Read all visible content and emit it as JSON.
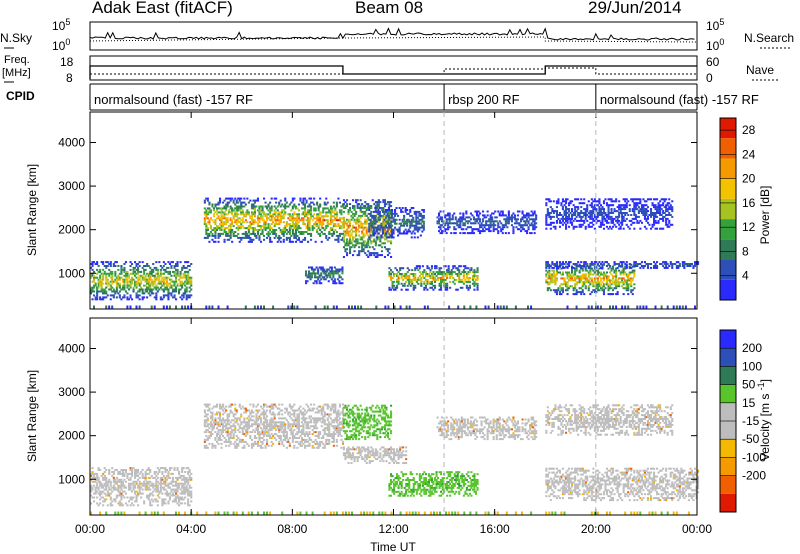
{
  "header": {
    "title": "Adak East (fitACF)",
    "beam": "Beam 08",
    "date": "29/Jun/2014"
  },
  "top_panels": {
    "nsky_label": "N.Sky",
    "nsearch_label": "N.Search",
    "freq_label_top": "Freq.",
    "freq_label_unit": "[MHz]",
    "nave_label": "Nave",
    "cpid_label": "CPID",
    "noise_ticks_left": [
      "10^5",
      "10^0"
    ],
    "noise_ticks_right": [
      "10^5",
      "10^0"
    ],
    "freq_ticks": [
      "18",
      "8"
    ],
    "nave_ticks": [
      "60",
      "0"
    ]
  },
  "cpid_segments": [
    {
      "label": "normalsound (fast) -157 RF",
      "start_h": 0,
      "end_h": 14
    },
    {
      "label": "rbsp 200 RF",
      "start_h": 14,
      "end_h": 20
    },
    {
      "label": "normalsound (fast) -157 RF",
      "start_h": 20,
      "end_h": 24
    }
  ],
  "colors": {
    "power_scale": [
      "#2a2aff",
      "#2c4fb8",
      "#2e7b56",
      "#35a13c",
      "#a7c321",
      "#f4c300",
      "#f59a00",
      "#f06000",
      "#e01a00"
    ],
    "velocity_scale": [
      "#2a2aff",
      "#2c4fb8",
      "#2e7b56",
      "#58c52b",
      "#bdbdbd",
      "#bdbdbd",
      "#f4b800",
      "#f59a00",
      "#f06000",
      "#e01a00"
    ],
    "ground_scatter": "#bdbdbd"
  },
  "chart_data": [
    {
      "type": "heatmap",
      "name": "power",
      "xlabel": "",
      "ylabel": "Slant Range [km]",
      "x_ticks": [
        "00:00",
        "04:00",
        "08:00",
        "12:00",
        "16:00",
        "20:00",
        "00:00"
      ],
      "y_ticks": [
        1000,
        2000,
        3000,
        4000
      ],
      "xlim_hours": [
        0,
        24
      ],
      "ylim_km": [
        180,
        4700
      ],
      "colorbar": {
        "label": "Power [dB]",
        "ticks": [
          4,
          8,
          12,
          16,
          20,
          24,
          28
        ],
        "range": [
          0,
          30
        ]
      },
      "regions": [
        {
          "t0": 0.0,
          "t1": 4.0,
          "r0": 380,
          "r1": 1250,
          "peak": 22
        },
        {
          "t0": 4.5,
          "t1": 10.0,
          "r0": 1700,
          "r1": 2700,
          "peak": 26
        },
        {
          "t0": 8.5,
          "t1": 10.0,
          "r0": 750,
          "r1": 1150,
          "peak": 12
        },
        {
          "t0": 10.0,
          "t1": 11.9,
          "r0": 1350,
          "r1": 2700,
          "peak": 26
        },
        {
          "t0": 11.0,
          "t1": 13.2,
          "r0": 1800,
          "r1": 2500,
          "peak": 10
        },
        {
          "t0": 11.8,
          "t1": 15.3,
          "r0": 600,
          "r1": 1150,
          "peak": 24
        },
        {
          "t0": 13.7,
          "t1": 17.6,
          "r0": 1900,
          "r1": 2400,
          "peak": 8
        },
        {
          "t0": 18.0,
          "t1": 21.5,
          "r0": 500,
          "r1": 1200,
          "peak": 26
        },
        {
          "t0": 18.0,
          "t1": 24.0,
          "r0": 1100,
          "r1": 1260,
          "peak": 8
        },
        {
          "t0": 18.0,
          "t1": 23.0,
          "r0": 2000,
          "r1": 2700,
          "peak": 6
        }
      ]
    },
    {
      "type": "heatmap",
      "name": "velocity",
      "xlabel": "Time UT",
      "ylabel": "Slant Range [km]",
      "x_ticks": [
        "00:00",
        "04:00",
        "08:00",
        "12:00",
        "16:00",
        "20:00",
        "00:00"
      ],
      "y_ticks": [
        1000,
        2000,
        3000,
        4000
      ],
      "xlim_hours": [
        0,
        24
      ],
      "ylim_km": [
        180,
        4700
      ],
      "colorbar": {
        "label": "Velocity [m s^-1]",
        "ticks": [
          200,
          100,
          50,
          15,
          -15,
          -50,
          -100,
          -200
        ]
      },
      "regions": [
        {
          "t0": 0.0,
          "t1": 4.0,
          "r0": 380,
          "r1": 1250,
          "class": "ground"
        },
        {
          "t0": 4.5,
          "t1": 10.0,
          "r0": 1700,
          "r1": 2700,
          "class": "ground"
        },
        {
          "t0": 10.0,
          "t1": 11.9,
          "r0": 1900,
          "r1": 2700,
          "class": "positive"
        },
        {
          "t0": 10.0,
          "t1": 12.5,
          "r0": 1350,
          "r1": 1750,
          "class": "ground"
        },
        {
          "t0": 11.8,
          "t1": 15.3,
          "r0": 600,
          "r1": 1150,
          "class": "positive"
        },
        {
          "t0": 13.7,
          "t1": 17.6,
          "r0": 1900,
          "r1": 2400,
          "class": "ground"
        },
        {
          "t0": 18.0,
          "t1": 24.0,
          "r0": 500,
          "r1": 1260,
          "class": "ground"
        },
        {
          "t0": 18.0,
          "t1": 23.0,
          "r0": 2000,
          "r1": 2700,
          "class": "ground"
        }
      ]
    }
  ]
}
